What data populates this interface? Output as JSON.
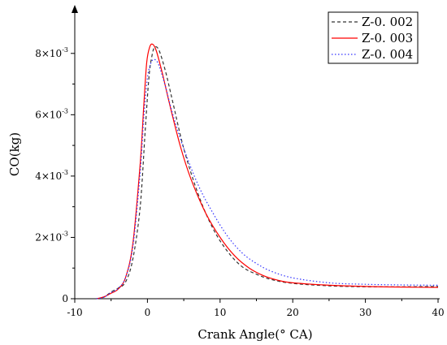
{
  "chart_data": {
    "type": "line",
    "xlabel": "Crank Angle(° CA)",
    "ylabel": "CO(kg)",
    "xlim": [
      -10,
      40
    ],
    "ylim": [
      0,
      0.009
    ],
    "grid": false,
    "legend_position": "top-right",
    "x_ticks": [
      {
        "value": -10,
        "label": "-10"
      },
      {
        "value": 0,
        "label": "0"
      },
      {
        "value": 10,
        "label": "10"
      },
      {
        "value": 20,
        "label": "20"
      },
      {
        "value": 30,
        "label": "30"
      },
      {
        "value": 40,
        "label": "40"
      }
    ],
    "y_ticks": [
      {
        "value": 0,
        "label": "0",
        "mantissa": "0",
        "exponent": ""
      },
      {
        "value": 0.002,
        "label": "2×10⁻³",
        "mantissa": "2×10",
        "exponent": "-3"
      },
      {
        "value": 0.004,
        "label": "4×10⁻³",
        "mantissa": "4×10",
        "exponent": "-3"
      },
      {
        "value": 0.006,
        "label": "6×10⁻³",
        "mantissa": "6×10",
        "exponent": "-3"
      },
      {
        "value": 0.008,
        "label": "8×10⁻³",
        "mantissa": "8×10",
        "exponent": "-3"
      }
    ],
    "series": [
      {
        "name": "Z-0. 002",
        "color": "#333333",
        "dash": "dashed",
        "points": [
          [
            -7,
            0
          ],
          [
            -6,
            5e-05
          ],
          [
            -5,
            0.00022
          ],
          [
            -4,
            0.00035
          ],
          [
            -3,
            0.00055
          ],
          [
            -2,
            0.0013
          ],
          [
            -1,
            0.003
          ],
          [
            -0.3,
            0.0055
          ],
          [
            0.2,
            0.0072
          ],
          [
            0.6,
            0.0079
          ],
          [
            1,
            0.0082
          ],
          [
            1.6,
            0.0081
          ],
          [
            2.5,
            0.0074
          ],
          [
            3.5,
            0.0064
          ],
          [
            5,
            0.0049
          ],
          [
            7,
            0.0034
          ],
          [
            9,
            0.0023
          ],
          [
            11,
            0.00155
          ],
          [
            13,
            0.00105
          ],
          [
            15,
            0.0008
          ],
          [
            17,
            0.00063
          ],
          [
            20,
            0.0005
          ],
          [
            25,
            0.00042
          ],
          [
            30,
            0.00039
          ],
          [
            35,
            0.00039
          ],
          [
            40,
            0.0004
          ]
        ]
      },
      {
        "name": "Z-0. 003",
        "color": "#ff0000",
        "dash": "solid",
        "points": [
          [
            -7,
            0
          ],
          [
            -6,
            6e-05
          ],
          [
            -5,
            0.00018
          ],
          [
            -4,
            0.00032
          ],
          [
            -3,
            0.0007
          ],
          [
            -2,
            0.0018
          ],
          [
            -1,
            0.0044
          ],
          [
            -0.5,
            0.0063
          ],
          [
            -0.1,
            0.0077
          ],
          [
            0.3,
            0.0082
          ],
          [
            0.7,
            0.0083
          ],
          [
            1.2,
            0.0081
          ],
          [
            2,
            0.0074
          ],
          [
            3,
            0.0064
          ],
          [
            4.5,
            0.005
          ],
          [
            6,
            0.0039
          ],
          [
            8,
            0.0028
          ],
          [
            10,
            0.002
          ],
          [
            12,
            0.0014
          ],
          [
            14,
            0.001
          ],
          [
            16,
            0.00075
          ],
          [
            18,
            0.0006
          ],
          [
            20,
            0.00052
          ],
          [
            25,
            0.00044
          ],
          [
            30,
            0.0004
          ],
          [
            35,
            0.00038
          ],
          [
            40,
            0.00037
          ]
        ]
      },
      {
        "name": "Z-0. 004",
        "color": "#3333ff",
        "dash": "dotted",
        "points": [
          [
            -7,
            0
          ],
          [
            -6,
            5e-05
          ],
          [
            -5,
            0.0002
          ],
          [
            -4,
            0.00034
          ],
          [
            -3,
            0.0007
          ],
          [
            -2,
            0.0017
          ],
          [
            -1,
            0.0041
          ],
          [
            -0.5,
            0.0059
          ],
          [
            0,
            0.0072
          ],
          [
            0.5,
            0.0077
          ],
          [
            1,
            0.0078
          ],
          [
            1.6,
            0.0076
          ],
          [
            2.5,
            0.0069
          ],
          [
            3.5,
            0.006
          ],
          [
            5,
            0.0049
          ],
          [
            7,
            0.0037
          ],
          [
            9,
            0.0028
          ],
          [
            11,
            0.00205
          ],
          [
            13,
            0.0015
          ],
          [
            15,
            0.00115
          ],
          [
            17,
            0.0009
          ],
          [
            20,
            0.00068
          ],
          [
            25,
            0.00052
          ],
          [
            30,
            0.00047
          ],
          [
            35,
            0.00045
          ],
          [
            40,
            0.00044
          ]
        ]
      }
    ]
  }
}
